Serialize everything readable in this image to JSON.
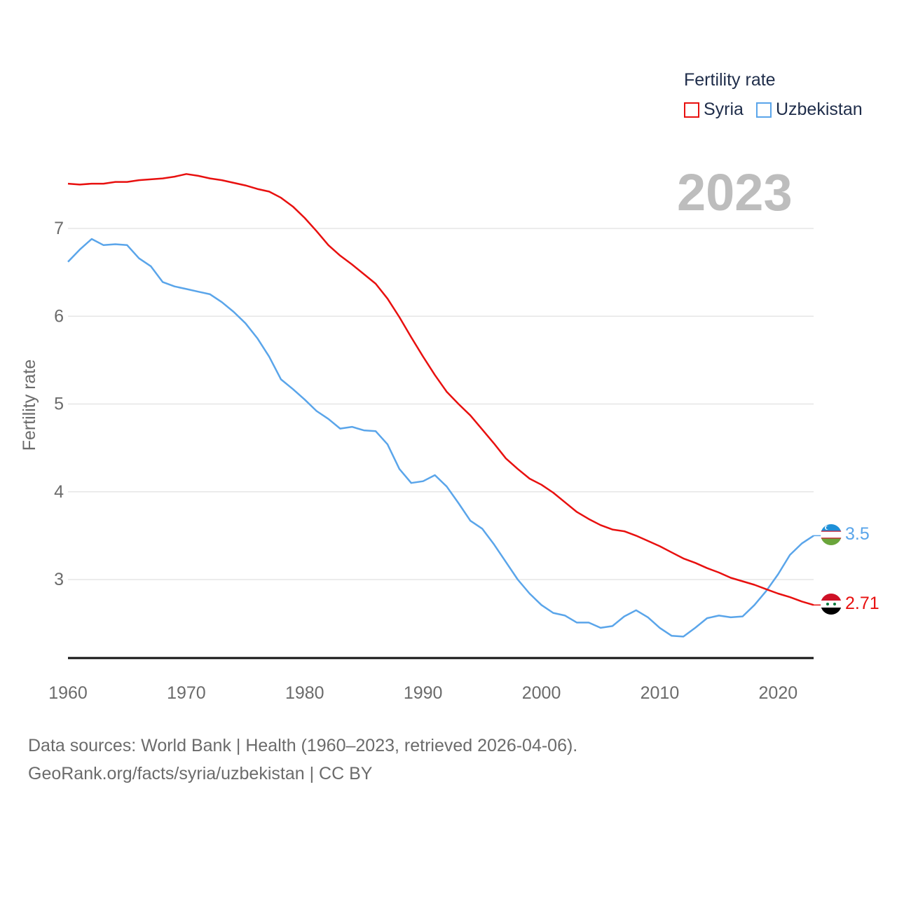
{
  "legend": {
    "title": "Fertility rate",
    "items": [
      {
        "name": "Syria",
        "color": "#e8100f"
      },
      {
        "name": "Uzbekistan",
        "color": "#5aa5ea"
      }
    ]
  },
  "year_badge": "2023",
  "footer": {
    "line1": "Data sources: World Bank | Health (1960–2023, retrieved 2026-04-06).",
    "line2": "GeoRank.org/facts/syria/uzbekistan | CC BY"
  },
  "chart_data": {
    "type": "line",
    "title": "",
    "xlabel": "",
    "ylabel": "Fertility rate",
    "xlim": [
      1960,
      2023
    ],
    "ylim": [
      2.1,
      7.6
    ],
    "yticks": [
      3,
      4,
      5,
      6,
      7
    ],
    "xticks": [
      1960,
      1970,
      1980,
      1990,
      2000,
      2010,
      2020
    ],
    "x": [
      1960,
      1961,
      1962,
      1963,
      1964,
      1965,
      1966,
      1967,
      1968,
      1969,
      1970,
      1971,
      1972,
      1973,
      1974,
      1975,
      1976,
      1977,
      1978,
      1979,
      1980,
      1981,
      1982,
      1983,
      1984,
      1985,
      1986,
      1987,
      1988,
      1989,
      1990,
      1991,
      1992,
      1993,
      1994,
      1995,
      1996,
      1997,
      1998,
      1999,
      2000,
      2001,
      2002,
      2003,
      2004,
      2005,
      2006,
      2007,
      2008,
      2009,
      2010,
      2011,
      2012,
      2013,
      2014,
      2015,
      2016,
      2017,
      2018,
      2019,
      2020,
      2021,
      2022,
      2023
    ],
    "series": [
      {
        "name": "Syria",
        "color": "#e8100f",
        "end_label": "2.71",
        "values": [
          7.51,
          7.5,
          7.51,
          7.51,
          7.53,
          7.53,
          7.55,
          7.56,
          7.57,
          7.59,
          7.62,
          7.6,
          7.57,
          7.55,
          7.52,
          7.49,
          7.45,
          7.42,
          7.35,
          7.25,
          7.12,
          6.97,
          6.81,
          6.69,
          6.59,
          6.48,
          6.37,
          6.2,
          5.99,
          5.76,
          5.54,
          5.33,
          5.14,
          5.0,
          4.87,
          4.71,
          4.55,
          4.38,
          4.26,
          4.15,
          4.08,
          3.99,
          3.88,
          3.77,
          3.69,
          3.62,
          3.57,
          3.55,
          3.5,
          3.44,
          3.38,
          3.31,
          3.24,
          3.19,
          3.13,
          3.08,
          3.02,
          2.98,
          2.94,
          2.89,
          2.84,
          2.8,
          2.75,
          2.71
        ]
      },
      {
        "name": "Uzbekistan",
        "color": "#5aa5ea",
        "end_label": "3.5",
        "values": [
          6.62,
          6.76,
          6.88,
          6.81,
          6.82,
          6.81,
          6.66,
          6.57,
          6.39,
          6.34,
          6.31,
          6.28,
          6.25,
          6.16,
          6.05,
          5.92,
          5.75,
          5.54,
          5.28,
          5.17,
          5.05,
          4.92,
          4.83,
          4.72,
          4.74,
          4.7,
          4.69,
          4.54,
          4.26,
          4.1,
          4.12,
          4.19,
          4.06,
          3.87,
          3.67,
          3.58,
          3.4,
          3.2,
          3.0,
          2.84,
          2.71,
          2.62,
          2.59,
          2.51,
          2.51,
          2.45,
          2.47,
          2.58,
          2.65,
          2.57,
          2.45,
          2.36,
          2.35,
          2.45,
          2.56,
          2.59,
          2.57,
          2.58,
          2.71,
          2.87,
          3.06,
          3.28,
          3.41,
          3.5
        ]
      }
    ]
  }
}
